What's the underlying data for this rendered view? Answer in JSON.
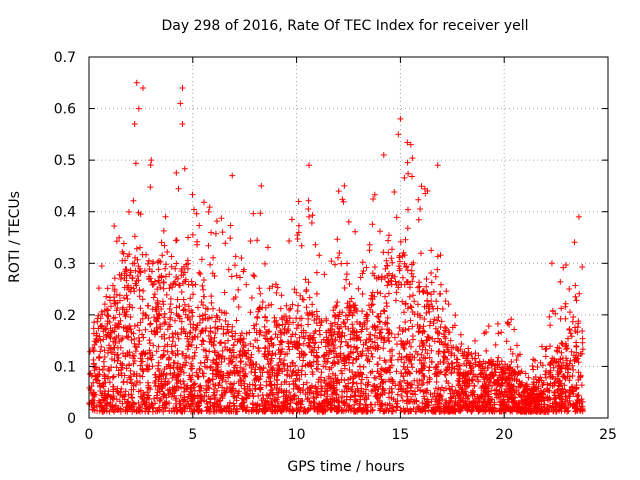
{
  "chart_data": {
    "type": "scatter",
    "title": "Day 298 of 2016, Rate Of TEC Index for receiver yell",
    "xlabel": "GPS time / hours",
    "ylabel": "ROTI / TECUs",
    "xlim": [
      0,
      25
    ],
    "ylim": [
      0,
      0.7
    ],
    "xticks": [
      0,
      5,
      10,
      15,
      20,
      25
    ],
    "yticks": [
      0,
      0.1,
      0.2,
      0.3,
      0.4,
      0.5,
      0.6,
      0.7
    ],
    "xtick_labels": [
      "0",
      "5",
      "10",
      "15",
      "20",
      "25"
    ],
    "ytick_labels": [
      "0",
      "0.1",
      "0.2",
      "0.3",
      "0.4",
      "0.5",
      "0.6",
      "0.7"
    ],
    "grid": true,
    "marker": "plus",
    "series_color": "#ff0000",
    "series": [
      {
        "name": "ROTI",
        "envelope_x": [
          0,
          0.5,
          1,
          1.5,
          2,
          2.5,
          3,
          3.5,
          4,
          4.5,
          5,
          5.5,
          6,
          6.5,
          7,
          7.5,
          8,
          8.5,
          9,
          9.5,
          10,
          10.5,
          11,
          11.5,
          12,
          12.5,
          13,
          13.5,
          14,
          14.5,
          15,
          15.5,
          16,
          16.5,
          17,
          17.5,
          18,
          18.5,
          19,
          19.5,
          20,
          20.5,
          21,
          21.5,
          22,
          22.5,
          23,
          23.5,
          23.8
        ],
        "envelope_max": [
          0.22,
          0.3,
          0.34,
          0.42,
          0.45,
          0.6,
          0.5,
          0.45,
          0.5,
          0.62,
          0.45,
          0.44,
          0.4,
          0.46,
          0.34,
          0.3,
          0.45,
          0.35,
          0.3,
          0.35,
          0.42,
          0.49,
          0.35,
          0.32,
          0.45,
          0.4,
          0.35,
          0.4,
          0.5,
          0.47,
          0.58,
          0.52,
          0.46,
          0.48,
          0.3,
          0.22,
          0.2,
          0.18,
          0.18,
          0.18,
          0.22,
          0.2,
          0.1,
          0.14,
          0.18,
          0.3,
          0.32,
          0.39,
          0.28
        ],
        "envelope_typ": [
          0.12,
          0.2,
          0.24,
          0.28,
          0.32,
          0.32,
          0.3,
          0.3,
          0.34,
          0.34,
          0.26,
          0.28,
          0.22,
          0.2,
          0.16,
          0.16,
          0.2,
          0.22,
          0.18,
          0.2,
          0.22,
          0.24,
          0.2,
          0.18,
          0.22,
          0.24,
          0.2,
          0.22,
          0.28,
          0.3,
          0.32,
          0.3,
          0.28,
          0.26,
          0.18,
          0.14,
          0.12,
          0.12,
          0.1,
          0.1,
          0.1,
          0.08,
          0.05,
          0.06,
          0.08,
          0.12,
          0.16,
          0.2,
          0.16
        ],
        "notable_points": [
          [
            2.3,
            0.65
          ],
          [
            2.6,
            0.64
          ],
          [
            4.5,
            0.64
          ],
          [
            4.4,
            0.61
          ],
          [
            2.4,
            0.6
          ],
          [
            2.2,
            0.57
          ],
          [
            4.5,
            0.57
          ],
          [
            15,
            0.58
          ],
          [
            14.9,
            0.55
          ],
          [
            3,
            0.5
          ],
          [
            14.2,
            0.51
          ],
          [
            15.5,
            0.53
          ],
          [
            10.6,
            0.49
          ],
          [
            16.8,
            0.49
          ],
          [
            12.3,
            0.45
          ],
          [
            8.3,
            0.45
          ],
          [
            6.9,
            0.47
          ],
          [
            10.6,
            0.39
          ],
          [
            23.6,
            0.39
          ],
          [
            22.3,
            0.3
          ]
        ]
      }
    ]
  }
}
